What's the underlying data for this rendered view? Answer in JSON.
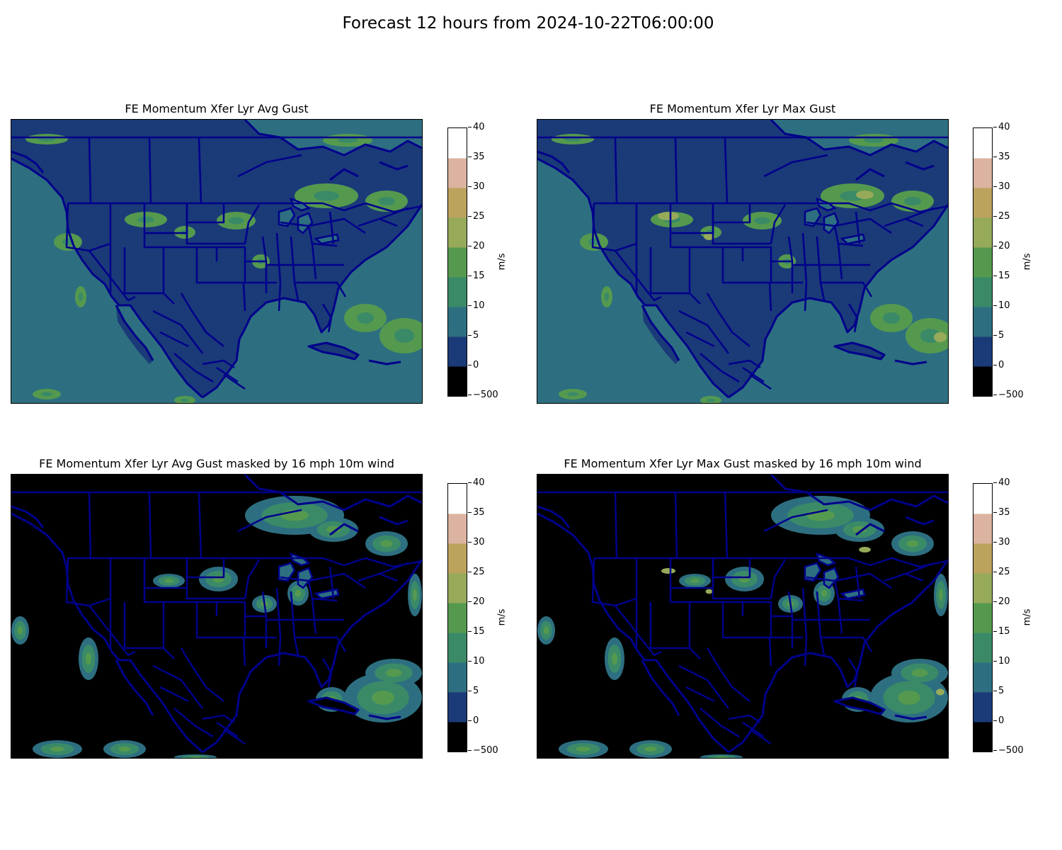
{
  "title": "Forecast 12 hours from 2024-10-22T06:00:00",
  "panels": [
    {
      "title": "FE Momentum Xfer Lyr Avg Gust",
      "masked": false
    },
    {
      "title": "FE Momentum Xfer Lyr Max Gust",
      "masked": false
    },
    {
      "title": "FE Momentum Xfer Lyr Avg Gust masked by 16 mph 10m wind",
      "masked": true
    },
    {
      "title": "FE Momentum Xfer Lyr Max Gust masked by 16 mph 10m wind",
      "masked": true
    }
  ],
  "colorbar": {
    "unit": "m/s",
    "ticks": [
      "−500",
      "0",
      "5",
      "10",
      "15",
      "20",
      "25",
      "30",
      "35",
      "40"
    ],
    "bins": [
      {
        "from": -500,
        "to": 0,
        "color": "#000000"
      },
      {
        "from": 0,
        "to": 5,
        "color": "#1b3a78"
      },
      {
        "from": 5,
        "to": 10,
        "color": "#2d6f80"
      },
      {
        "from": 10,
        "to": 15,
        "color": "#3a8a68"
      },
      {
        "from": 15,
        "to": 20,
        "color": "#55994f"
      },
      {
        "from": 20,
        "to": 25,
        "color": "#96aa5a"
      },
      {
        "from": 25,
        "to": 30,
        "color": "#bba35e"
      },
      {
        "from": 30,
        "to": 35,
        "color": "#dbb3a0"
      },
      {
        "from": 35,
        "to": 40,
        "color": "#ffffff"
      }
    ]
  },
  "colors": {
    "boundary": "#00008b",
    "ocean_base": "#2d6f80",
    "land_low": "#1b3a78",
    "masked": "#000000"
  }
}
